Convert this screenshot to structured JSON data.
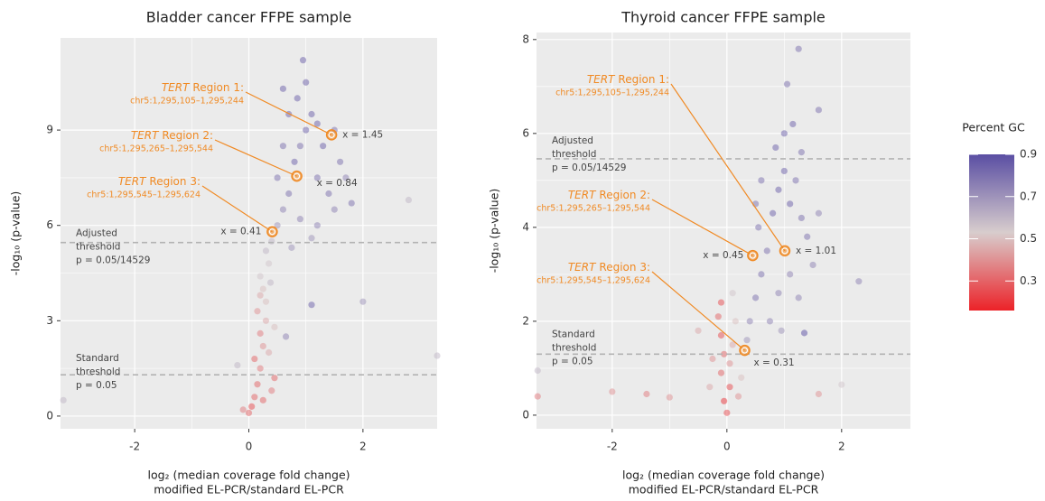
{
  "chart_data": [
    {
      "type": "scatter",
      "title": "Bladder cancer FFPE sample",
      "ylabel": "-log₁₀ (p-value)",
      "xlabel": [
        "log₂ (median coverage fold change)",
        "modified EL-PCR/standard EL-PCR"
      ],
      "xlim": [
        -3.3,
        3.3
      ],
      "xticks": [
        -2,
        0,
        2
      ],
      "ylim": [
        -0.4,
        11.9
      ],
      "yticks": [
        0,
        3,
        6,
        9
      ],
      "grid": true,
      "points": {
        "x": [
          0.0,
          0.05,
          0.1,
          -0.1,
          0.15,
          0.2,
          0.1,
          0.25,
          0.2,
          0.3,
          0.15,
          0.3,
          0.25,
          0.2,
          0.35,
          0.3,
          0.4,
          0.25,
          0.4,
          0.45,
          0.35,
          0.45,
          0.2,
          0.38,
          0.5,
          0.6,
          0.7,
          0.5,
          0.8,
          0.9,
          1.0,
          1.1,
          1.2,
          1.4,
          1.6,
          1.7,
          1.3,
          0.85,
          1.0,
          0.95,
          0.7,
          0.6,
          1.5,
          1.8,
          1.2,
          0.9,
          1.1,
          0.75,
          1.2,
          1.5,
          0.6,
          2.8,
          -3.25,
          3.3,
          1.1,
          0.65,
          -0.2,
          2.0
        ],
        "y": [
          0.1,
          0.3,
          0.6,
          0.2,
          1.0,
          1.5,
          1.8,
          2.2,
          2.6,
          3.0,
          3.3,
          3.6,
          4.0,
          4.4,
          4.8,
          5.2,
          5.5,
          0.5,
          0.8,
          1.2,
          2.0,
          2.8,
          3.8,
          4.2,
          6.0,
          6.5,
          7.0,
          7.5,
          8.0,
          8.5,
          9.0,
          9.5,
          7.5,
          7.0,
          8.0,
          7.5,
          8.5,
          10.0,
          10.5,
          11.2,
          9.5,
          8.5,
          6.5,
          6.7,
          6.0,
          6.2,
          5.6,
          5.3,
          9.2,
          9.0,
          10.3,
          6.8,
          0.5,
          1.9,
          3.5,
          2.5,
          1.6,
          3.6
        ],
        "gc": [
          0.3,
          0.25,
          0.3,
          0.35,
          0.3,
          0.35,
          0.3,
          0.4,
          0.35,
          0.45,
          0.4,
          0.5,
          0.5,
          0.55,
          0.55,
          0.6,
          0.6,
          0.3,
          0.35,
          0.3,
          0.45,
          0.5,
          0.45,
          0.6,
          0.7,
          0.75,
          0.8,
          0.8,
          0.85,
          0.8,
          0.85,
          0.85,
          0.8,
          0.8,
          0.8,
          0.75,
          0.85,
          0.85,
          0.85,
          0.85,
          0.85,
          0.8,
          0.75,
          0.8,
          0.75,
          0.75,
          0.7,
          0.7,
          0.85,
          0.8,
          0.85,
          0.6,
          0.6,
          0.6,
          0.85,
          0.75,
          0.6,
          0.7
        ]
      },
      "thresholds": [
        {
          "y": 5.46,
          "label": [
            "Adjusted",
            "threshold",
            "p = 0.05/14529"
          ]
        },
        {
          "y": 1.3,
          "label": [
            "Standard",
            "threshold",
            "p = 0.05"
          ]
        }
      ],
      "annotations": [
        {
          "gene": "TERT",
          "label": "Region 1:",
          "coords": "chr5:1,295,105–1,295,244",
          "x": 1.45,
          "y": 8.85,
          "point_label": "x = 1.45"
        },
        {
          "gene": "TERT",
          "label": "Region 2:",
          "coords": "chr5:1,295,265–1,295,544",
          "x": 0.84,
          "y": 7.55,
          "point_label": "x = 0.84"
        },
        {
          "gene": "TERT",
          "label": "Region 3:",
          "coords": "chr5:1,295,545–1,295,624",
          "x": 0.41,
          "y": 5.8,
          "point_label": "x = 0.41"
        }
      ]
    },
    {
      "type": "scatter",
      "title": "Thyroid cancer FFPE sample",
      "ylabel": "-log₁₀ (p-value)",
      "xlabel": [
        "log₂ (median coverage fold change)",
        "modified EL-PCR/standard EL-PCR"
      ],
      "xlim": [
        -3.32,
        3.2
      ],
      "xticks": [
        -2,
        0,
        2
      ],
      "ylim": [
        -0.29,
        8.15
      ],
      "yticks": [
        0,
        2,
        4,
        6,
        8
      ],
      "grid": true,
      "points": {
        "x": [
          0,
          -0.05,
          0.05,
          -0.1,
          -0.05,
          -0.1,
          -0.15,
          -0.1,
          0.05,
          0.1,
          0.15,
          -0.3,
          0.2,
          0.25,
          0.1,
          -0.25,
          0.35,
          0.4,
          0.5,
          0.6,
          0.7,
          0.55,
          0.8,
          0.9,
          1.0,
          1.1,
          1.2,
          1.3,
          1.4,
          1.1,
          0.9,
          1.25,
          0.75,
          0.95,
          1.5,
          1.15,
          0.85,
          1.0,
          0.6,
          0.5,
          1.6,
          1.3,
          1.25,
          1.05,
          1.6,
          2.3,
          1.35,
          -1.4,
          -1.0,
          -3.3,
          -3.3,
          -2,
          1.6,
          2.0,
          -0.5
        ],
        "y": [
          0.05,
          0.3,
          0.6,
          0.9,
          1.3,
          1.7,
          2.1,
          2.4,
          1.1,
          1.5,
          2.0,
          0.6,
          0.4,
          0.8,
          2.6,
          1.2,
          1.6,
          2.0,
          2.5,
          3.0,
          3.5,
          4.0,
          4.3,
          4.8,
          5.2,
          4.5,
          5.0,
          4.2,
          3.8,
          3.0,
          2.6,
          2.5,
          2.0,
          1.8,
          3.2,
          6.2,
          5.7,
          6.0,
          5.0,
          4.5,
          4.3,
          5.6,
          7.8,
          7.05,
          6.5,
          2.85,
          1.75,
          0.45,
          0.38,
          0.95,
          0.4,
          0.5,
          0.45,
          0.65,
          1.8
        ],
        "gc": [
          0.25,
          0.2,
          0.25,
          0.3,
          0.3,
          0.25,
          0.3,
          0.25,
          0.4,
          0.45,
          0.5,
          0.45,
          0.4,
          0.5,
          0.55,
          0.4,
          0.7,
          0.75,
          0.8,
          0.8,
          0.8,
          0.8,
          0.85,
          0.85,
          0.85,
          0.85,
          0.8,
          0.8,
          0.8,
          0.75,
          0.75,
          0.75,
          0.75,
          0.7,
          0.75,
          0.85,
          0.85,
          0.85,
          0.8,
          0.8,
          0.75,
          0.8,
          0.8,
          0.8,
          0.8,
          0.75,
          0.9,
          0.35,
          0.4,
          0.6,
          0.35,
          0.4,
          0.4,
          0.55,
          0.45
        ]
      },
      "thresholds": [
        {
          "y": 5.46,
          "label": [
            "Adjusted",
            "threshold",
            "p = 0.05/14529"
          ]
        },
        {
          "y": 1.3,
          "label": [
            "Standard",
            "threshold",
            "p = 0.05"
          ]
        }
      ],
      "annotations": [
        {
          "gene": "TERT",
          "label": "Region 1:",
          "coords": "chr5:1,295,105–1,295,244",
          "x": 1.01,
          "y": 3.5,
          "point_label": "x = 1.01"
        },
        {
          "gene": "TERT",
          "label": "Region 2:",
          "coords": "chr5:1,295,265–1,295,544",
          "x": 0.45,
          "y": 3.4,
          "point_label": "x = 0.45"
        },
        {
          "gene": "TERT",
          "label": "Region 3:",
          "coords": "chr5:1,295,545–1,295,624",
          "x": 0.31,
          "y": 1.38,
          "point_label": "x = 0.31"
        }
      ]
    }
  ],
  "colorbar": {
    "title": "Percent GC",
    "lim": [
      0.16,
      0.9
    ],
    "ticks": [
      0.3,
      0.5,
      0.7,
      0.9
    ],
    "colors": [
      "#ec2228",
      "#d8cdcd",
      "#5a4ea3"
    ]
  },
  "annotation_color": "#f08a24",
  "threshold_color": "#b3b3b3"
}
